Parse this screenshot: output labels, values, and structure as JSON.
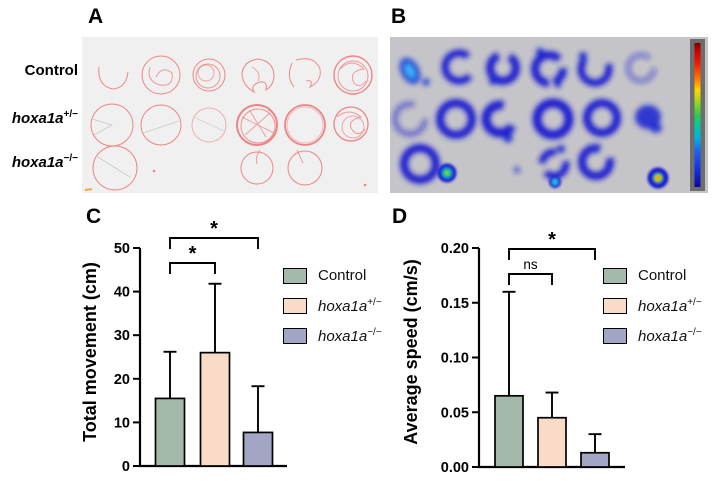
{
  "panels": {
    "a": "A",
    "b": "B",
    "c": "C",
    "d": "D"
  },
  "panel_a": {
    "row_labels": [
      {
        "base": "Control",
        "sup": "",
        "italic": false
      },
      {
        "base": "hoxa1a",
        "sup": "+/−",
        "italic": true
      },
      {
        "base": "hoxa1a",
        "sup": "−/−",
        "italic": true
      }
    ],
    "background": "#f1f0f1",
    "trace_color": "#ee8484"
  },
  "panel_b": {
    "background": "#c5c5c9",
    "heat_blue": "#1d1dd0",
    "colorbar_outer": "#6d6d6d",
    "colorbar_scale": [
      "#7a0000",
      "#c40000",
      "#f32000",
      "#ff7a00",
      "#ffd800",
      "#8fd61e",
      "#2fc94e",
      "#00c9a0",
      "#00b4e4",
      "#1e64f0",
      "#1430e0",
      "#0a0a96"
    ]
  },
  "legend": {
    "items": [
      {
        "base": "Control",
        "sup": "",
        "italic": false,
        "color": "#a4b9a9"
      },
      {
        "base": "hoxa1a",
        "sup": "+/−",
        "italic": true,
        "color": "#f8dcc8"
      },
      {
        "base": "hoxa1a",
        "sup": "−/−",
        "italic": true,
        "color": "#a2a5c3"
      }
    ]
  },
  "chart_data": [
    {
      "panel": "C",
      "type": "bar",
      "title": "",
      "ylabel": "Total movement (cm)",
      "xlabel": "",
      "ylim": [
        0,
        50
      ],
      "yticks": [
        0,
        10,
        20,
        30,
        40,
        50
      ],
      "ytick_labels": [
        "0",
        "10",
        "20",
        "30",
        "40",
        "50"
      ],
      "categories": [
        "Control",
        "hoxa1a+/−",
        "hoxa1a−/−"
      ],
      "values": [
        15.5,
        26,
        7.7
      ],
      "errors_upper": [
        10.7,
        15.8,
        10.6
      ],
      "bar_colors": [
        "#a4b9a9",
        "#f8dcc8",
        "#a2a5c3"
      ],
      "significance": [
        {
          "from": 0,
          "to": 1,
          "label": "*"
        },
        {
          "from": 0,
          "to": 2,
          "label": "*"
        }
      ],
      "grid": false,
      "legend_position": "right"
    },
    {
      "panel": "D",
      "type": "bar",
      "title": "",
      "ylabel": "Average speed (cm/s)",
      "xlabel": "",
      "ylim": [
        0,
        0.2
      ],
      "yticks": [
        0,
        0.05,
        0.1,
        0.15,
        0.2
      ],
      "ytick_labels": [
        "0.00",
        "0.05",
        "0.10",
        "0.15",
        "0.20"
      ],
      "categories": [
        "Control",
        "hoxa1a+/−",
        "hoxa1a−/−"
      ],
      "values": [
        0.065,
        0.045,
        0.013
      ],
      "errors_upper": [
        0.095,
        0.023,
        0.017
      ],
      "bar_colors": [
        "#a4b9a9",
        "#f8dcc8",
        "#a2a5c3"
      ],
      "significance": [
        {
          "from": 0,
          "to": 1,
          "label": "ns"
        },
        {
          "from": 0,
          "to": 2,
          "label": "*"
        }
      ],
      "grid": false,
      "legend_position": "right"
    }
  ]
}
